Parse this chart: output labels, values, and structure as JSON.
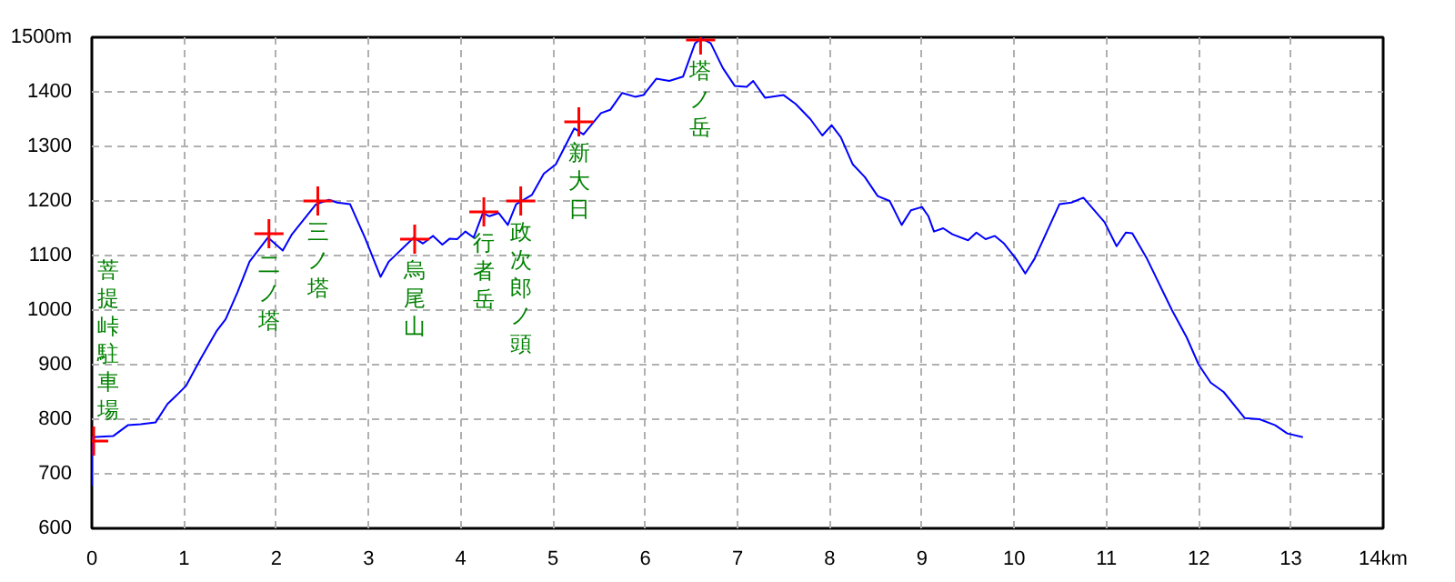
{
  "chart_data": {
    "type": "line",
    "xlim": [
      0,
      14
    ],
    "ylim": [
      600,
      1500
    ],
    "xticks": [
      0,
      1,
      2,
      3,
      4,
      5,
      6,
      7,
      8,
      9,
      10,
      11,
      12,
      13,
      {
        "value": 14,
        "label": "14km"
      }
    ],
    "yticks": [
      600,
      700,
      800,
      900,
      1000,
      1100,
      1200,
      1300,
      1400,
      {
        "value": 1500,
        "label": "1500m"
      }
    ],
    "grid": true,
    "series": [
      {
        "color": "#0000ff",
        "x": [
          0,
          0,
          0.23,
          0.39,
          0.53,
          0.69,
          0.82,
          0.92,
          1.02,
          1.18,
          1.35,
          1.45,
          1.58,
          1.71,
          1.91,
          2.07,
          2.17,
          2.43,
          2.57,
          2.66,
          2.8,
          2.96,
          3.13,
          3.22,
          3.49,
          3.59,
          3.7,
          3.8,
          3.88,
          3.96,
          4.05,
          4.14,
          4.24,
          4.31,
          4.41,
          4.51,
          4.6,
          4.77,
          4.9,
          5.03,
          5.23,
          5.33,
          5.52,
          5.62,
          5.75,
          5.89,
          5.98,
          6.12,
          6.26,
          6.41,
          6.54,
          6.61,
          6.71,
          6.84,
          6.97,
          7.1,
          7.17,
          7.3,
          7.5,
          7.63,
          7.79,
          7.92,
          8.02,
          8.12,
          8.25,
          8.38,
          8.52,
          8.65,
          8.78,
          8.88,
          9.0,
          9.07,
          9.13,
          9.23,
          9.33,
          9.5,
          9.59,
          9.69,
          9.79,
          9.89,
          10.02,
          10.12,
          10.22,
          10.49,
          10.62,
          10.75,
          10.98,
          11.11,
          11.21,
          11.28,
          11.44,
          11.71,
          11.87,
          12.0,
          12.13,
          12.27,
          12.5,
          12.66,
          12.83,
          12.96,
          13.13
        ],
        "values": [
          678,
          767,
          769,
          789,
          791,
          794,
          828,
          844,
          861,
          911,
          961,
          983,
          1033,
          1089,
          1133,
          1109,
          1139,
          1194,
          1202,
          1197,
          1194,
          1133,
          1061,
          1089,
          1133,
          1122,
          1136,
          1120,
          1131,
          1130,
          1144,
          1133,
          1178,
          1172,
          1178,
          1156,
          1194,
          1211,
          1250,
          1267,
          1333,
          1322,
          1361,
          1367,
          1398,
          1391,
          1394,
          1424,
          1420,
          1428,
          1489,
          1498,
          1489,
          1444,
          1411,
          1409,
          1420,
          1389,
          1394,
          1378,
          1350,
          1320,
          1339,
          1317,
          1267,
          1244,
          1209,
          1200,
          1156,
          1183,
          1189,
          1172,
          1144,
          1150,
          1139,
          1128,
          1142,
          1130,
          1136,
          1122,
          1094,
          1067,
          1094,
          1194,
          1197,
          1206,
          1161,
          1117,
          1142,
          1141,
          1094,
          1000,
          950,
          900,
          867,
          850,
          802,
          800,
          789,
          774,
          767
        ]
      },
      {
        "type": "scatter",
        "marker": "cross",
        "color": "#ff0000",
        "x": [
          0.02,
          1.92,
          2.45,
          3.5,
          4.25,
          4.65,
          5.28,
          6.6
        ],
        "values": [
          760,
          1140,
          1200,
          1130,
          1180,
          1200,
          1345,
          1495
        ]
      }
    ],
    "annotations": [
      {
        "text": "菩提峠駐車場",
        "x": 0.02,
        "y": 760
      },
      {
        "text": "二ノ塔",
        "x": 1.92,
        "y": 1140
      },
      {
        "text": "三ノ塔",
        "x": 2.45,
        "y": 1200
      },
      {
        "text": "烏尾山",
        "x": 3.5,
        "y": 1130
      },
      {
        "text": "行者岳",
        "x": 4.25,
        "y": 1180
      },
      {
        "text": "政次郎ノ頭",
        "x": 4.65,
        "y": 1200
      },
      {
        "text": "新大日",
        "x": 5.28,
        "y": 1345
      },
      {
        "text": "塔ノ岳",
        "x": 6.6,
        "y": 1495
      }
    ]
  }
}
